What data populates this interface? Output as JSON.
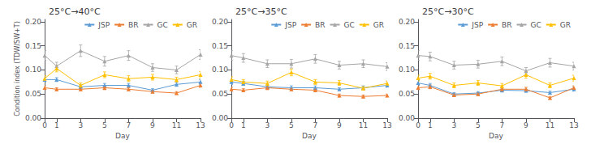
{
  "chart_data": [
    {
      "type": "line",
      "title": "25°C→40°C",
      "xlabel": "Day",
      "ylabel": "Condition index (TDW/SW+T)",
      "x": [
        0,
        1,
        3,
        5,
        7,
        9,
        11,
        13
      ],
      "xlim": [
        0,
        13
      ],
      "xticks": [
        0,
        1,
        3,
        5,
        7,
        9,
        11,
        13
      ],
      "ylim": [
        0.0,
        0.205
      ],
      "yticks": [
        {
          "value": 0.0,
          "label": "0.00"
        },
        {
          "value": 0.05,
          "label": "0.05"
        },
        {
          "value": 0.1,
          "label": "0.10"
        },
        {
          "value": 0.15,
          "label": "0.15"
        },
        {
          "value": 0.2,
          "label": "0.20"
        }
      ],
      "grid": false,
      "legend": "upper right",
      "series": [
        {
          "name": "JSP",
          "color": "#5B9BD5",
          "marker": "triangle",
          "values": [
            0.08,
            0.08,
            0.065,
            0.068,
            0.068,
            0.058,
            0.07,
            0.075
          ],
          "errors": [
            0.005,
            0.004,
            0.004,
            0.004,
            0.004,
            0.003,
            0.004,
            0.005
          ]
        },
        {
          "name": "BR",
          "color": "#ED7D31",
          "marker": "triangle",
          "values": [
            0.063,
            0.06,
            0.06,
            0.063,
            0.06,
            0.055,
            0.052,
            0.068
          ],
          "errors": [
            0.004,
            0.003,
            0.003,
            0.004,
            0.003,
            0.003,
            0.003,
            0.004
          ]
        },
        {
          "name": "GC",
          "color": "#A5A5A5",
          "marker": "triangle",
          "values": [
            0.13,
            0.108,
            0.14,
            0.118,
            0.13,
            0.105,
            0.1,
            0.132
          ],
          "errors": [
            0.01,
            0.008,
            0.012,
            0.01,
            0.01,
            0.008,
            0.008,
            0.01
          ]
        },
        {
          "name": "GR",
          "color": "#FFC000",
          "marker": "triangle",
          "values": [
            0.082,
            0.103,
            0.068,
            0.09,
            0.082,
            0.085,
            0.08,
            0.09
          ],
          "errors": [
            0.006,
            0.007,
            0.005,
            0.006,
            0.006,
            0.006,
            0.005,
            0.007
          ]
        }
      ]
    },
    {
      "type": "line",
      "title": "25°C→35°C",
      "xlabel": "Day",
      "x": [
        0,
        1,
        3,
        5,
        7,
        9,
        11,
        13
      ],
      "xlim": [
        0,
        13
      ],
      "xticks": [
        0,
        1,
        3,
        5,
        7,
        9,
        11,
        13
      ],
      "ylim": [
        0.0,
        0.205
      ],
      "yticks": [
        {
          "value": 0.0,
          "label": "0.00"
        },
        {
          "value": 0.05,
          "label": "0.05"
        },
        {
          "value": 0.1,
          "label": "0.10"
        },
        {
          "value": 0.15,
          "label": "0.15"
        },
        {
          "value": 0.2,
          "label": "0.20"
        }
      ],
      "grid": false,
      "legend": "upper right",
      "series": [
        {
          "name": "JSP",
          "color": "#5B9BD5",
          "marker": "triangle",
          "values": [
            0.075,
            0.072,
            0.065,
            0.063,
            0.063,
            0.06,
            0.063,
            0.068
          ],
          "errors": [
            0.005,
            0.004,
            0.004,
            0.004,
            0.004,
            0.003,
            0.004,
            0.004
          ]
        },
        {
          "name": "BR",
          "color": "#ED7D31",
          "marker": "triangle",
          "values": [
            0.06,
            0.058,
            0.063,
            0.06,
            0.058,
            0.047,
            0.045,
            0.047
          ],
          "errors": [
            0.004,
            0.003,
            0.004,
            0.003,
            0.003,
            0.003,
            0.003,
            0.003
          ]
        },
        {
          "name": "GC",
          "color": "#A5A5A5",
          "marker": "triangle",
          "values": [
            0.13,
            0.125,
            0.113,
            0.113,
            0.123,
            0.11,
            0.113,
            0.107
          ],
          "errors": [
            0.01,
            0.009,
            0.008,
            0.009,
            0.009,
            0.008,
            0.008,
            0.008
          ]
        },
        {
          "name": "GR",
          "color": "#FFC000",
          "marker": "triangle",
          "values": [
            0.08,
            0.075,
            0.072,
            0.095,
            0.075,
            0.073,
            0.062,
            0.072
          ],
          "errors": [
            0.006,
            0.005,
            0.005,
            0.007,
            0.005,
            0.005,
            0.004,
            0.005
          ]
        }
      ]
    },
    {
      "type": "line",
      "title": "25°C→30°C",
      "xlabel": "Day",
      "x": [
        0,
        1,
        3,
        5,
        7,
        9,
        11,
        13
      ],
      "xlim": [
        0,
        13
      ],
      "xticks": [
        0,
        1,
        3,
        5,
        7,
        9,
        11,
        13
      ],
      "ylim": [
        0.0,
        0.205
      ],
      "yticks": [
        {
          "value": 0.0,
          "label": "0.00"
        },
        {
          "value": 0.05,
          "label": "0.05"
        },
        {
          "value": 0.1,
          "label": "0.10"
        },
        {
          "value": 0.15,
          "label": "0.15"
        },
        {
          "value": 0.2,
          "label": "0.20"
        }
      ],
      "grid": false,
      "legend": "upper right",
      "series": [
        {
          "name": "JSP",
          "color": "#5B9BD5",
          "marker": "triangle",
          "values": [
            0.073,
            0.068,
            0.05,
            0.052,
            0.058,
            0.057,
            0.053,
            0.06
          ],
          "errors": [
            0.005,
            0.004,
            0.003,
            0.003,
            0.004,
            0.003,
            0.003,
            0.004
          ]
        },
        {
          "name": "BR",
          "color": "#ED7D31",
          "marker": "triangle",
          "values": [
            0.063,
            0.065,
            0.048,
            0.05,
            0.06,
            0.06,
            0.042,
            0.063
          ],
          "errors": [
            0.004,
            0.004,
            0.003,
            0.003,
            0.004,
            0.004,
            0.003,
            0.004
          ]
        },
        {
          "name": "GC",
          "color": "#A5A5A5",
          "marker": "triangle",
          "values": [
            0.13,
            0.128,
            0.11,
            0.112,
            0.118,
            0.098,
            0.115,
            0.108
          ],
          "errors": [
            0.01,
            0.009,
            0.008,
            0.008,
            0.009,
            0.007,
            0.009,
            0.008
          ]
        },
        {
          "name": "GR",
          "color": "#FFC000",
          "marker": "triangle",
          "values": [
            0.083,
            0.087,
            0.068,
            0.073,
            0.067,
            0.09,
            0.068,
            0.083
          ],
          "errors": [
            0.006,
            0.006,
            0.005,
            0.005,
            0.005,
            0.007,
            0.005,
            0.006
          ]
        }
      ]
    }
  ]
}
